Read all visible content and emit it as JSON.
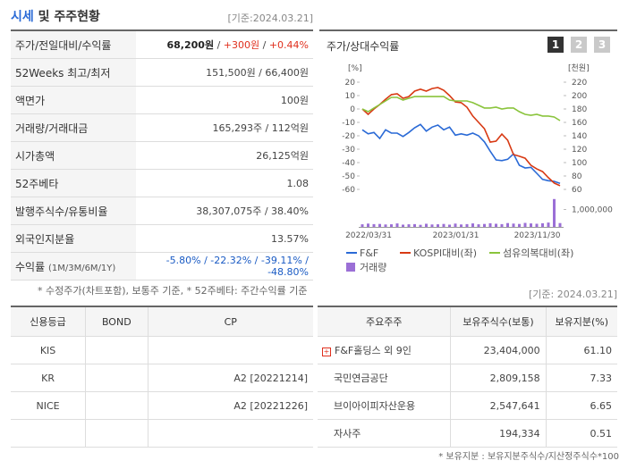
{
  "header": {
    "title_accent": "시세",
    "title": " 및 주주현황",
    "date": "[기준:2024.03.21]"
  },
  "quote_table": {
    "rows": [
      {
        "label": "주가/전일대비/수익률",
        "value": [
          {
            "text": "68,200원",
            "color": "#222222",
            "bold": true
          },
          {
            "text": " / "
          },
          {
            "text": "+300원",
            "color": "#e0301e"
          },
          {
            "text": " / "
          },
          {
            "text": "+0.44%",
            "color": "#e0301e"
          }
        ]
      },
      {
        "label": "52Weeks 최고/최저",
        "value": [
          {
            "text": "151,500원 / 66,400원"
          }
        ]
      },
      {
        "label": "액면가",
        "value": [
          {
            "text": "100원"
          }
        ]
      },
      {
        "label": "거래량/거래대금",
        "value": [
          {
            "text": "165,293주 / 112억원"
          }
        ]
      },
      {
        "label": "시가총액",
        "value": [
          {
            "text": "26,125억원"
          }
        ]
      },
      {
        "label": "52주베타",
        "value": [
          {
            "text": "1.08"
          }
        ]
      },
      {
        "label": "발행주식수/유통비율",
        "value": [
          {
            "text": "38,307,075주 / 38.40%"
          }
        ]
      },
      {
        "label": "외국인지분율",
        "value": [
          {
            "text": "13.57%"
          }
        ]
      },
      {
        "label": "수익률",
        "sublabel": "(1M/3M/6M/1Y)",
        "value": [
          {
            "text": "-5.80% / -22.32% / -39.11% / -48.80%",
            "color": "#1a5bc4"
          }
        ]
      }
    ]
  },
  "chart_panel": {
    "title": "주가/상대수익률",
    "buttons": [
      "1",
      "2",
      "3"
    ]
  },
  "chart_data": {
    "type": "line",
    "left_axis_label": "[%]",
    "right_axis_label": "[천원]",
    "categories": [
      "2022/03/31",
      null,
      null,
      null,
      null,
      null,
      null,
      null,
      null,
      null,
      null,
      null,
      null,
      null,
      null,
      "2023/01/31",
      null,
      null,
      null,
      null,
      null,
      null,
      null,
      null,
      null,
      null,
      null,
      null,
      null,
      "2023/11/30",
      null,
      null,
      null,
      null,
      null
    ],
    "ylim": [
      -60,
      20
    ],
    "yticks": [
      20,
      10,
      0,
      -10,
      -20,
      -30,
      -40,
      -50,
      -60
    ],
    "y2lim": [
      60,
      220
    ],
    "y2ticks": [
      220,
      200,
      180,
      160,
      140,
      120,
      100,
      80,
      60
    ],
    "volume_lim": [
      0,
      2000000
    ],
    "volume_ticks": [
      {
        "value": 1000000,
        "label": "1,000,000"
      }
    ],
    "series": [
      {
        "name": "F&F",
        "color": "#2a6ad6",
        "axis": "y2",
        "values": [
          149,
          143,
          145,
          136,
          149,
          144,
          144,
          139,
          145,
          152,
          157,
          147,
          153,
          156,
          149,
          153,
          141,
          143,
          141,
          144,
          140,
          131,
          117,
          104,
          103,
          105,
          113,
          96,
          92,
          93,
          84,
          75,
          73,
          72,
          69
        ]
      },
      {
        "name": "KOSPI대비(좌)",
        "color": "#d83a14",
        "values": [
          0,
          -4,
          0,
          3.3,
          7.3,
          10.7,
          11.3,
          8,
          9.3,
          13.3,
          14.7,
          13.3,
          15.3,
          16,
          14,
          10,
          5.3,
          4.7,
          1.3,
          -5.3,
          -10,
          -14.7,
          -24.7,
          -24,
          -18.7,
          -23.3,
          -34,
          -35.3,
          -36.7,
          -42,
          -44.7,
          -46.7,
          -51.3,
          -55.3,
          -57.3
        ]
      },
      {
        "name": "섬유의복대비(좌)",
        "color": "#8ac43c",
        "values": [
          0,
          -2,
          0.7,
          3.3,
          6,
          8.7,
          8.7,
          6.7,
          8,
          9.3,
          9.3,
          9.3,
          9.3,
          9.3,
          9.3,
          6.7,
          6,
          6,
          6,
          4.7,
          2.7,
          0.7,
          0.7,
          1.3,
          0,
          0.7,
          0.7,
          -2,
          -4,
          -4.7,
          -4,
          -5.3,
          -5.3,
          -6,
          -8.7
        ]
      },
      {
        "name": "거래량",
        "color": "#9b6fd6",
        "type": "bar",
        "axis": "volume",
        "values": [
          150000,
          190000,
          160000,
          170000,
          140000,
          150000,
          200000,
          130000,
          150000,
          160000,
          120000,
          180000,
          140000,
          150000,
          170000,
          130000,
          190000,
          140000,
          160000,
          200000,
          150000,
          170000,
          210000,
          180000,
          160000,
          220000,
          190000,
          170000,
          230000,
          200000,
          180000,
          210000,
          250000,
          1600000,
          220000
        ]
      }
    ]
  },
  "footnote": "* 수정주가(차트포함), 보통주 기준, * 52주베타: 주간수익률 기준",
  "date2": "[기준: 2024.03.21]",
  "credit_table": {
    "headers": [
      "신용등급",
      "BOND",
      "CP"
    ],
    "rows": [
      [
        "KIS",
        null,
        null
      ],
      [
        "KR",
        null,
        "A2 [20221214]"
      ],
      [
        "NICE",
        null,
        "A2 [20221226]"
      ],
      [
        null,
        null,
        null
      ]
    ]
  },
  "holder_table": {
    "headers": [
      "주요주주",
      "보유주식수(보통)",
      "보유지분(%)"
    ],
    "rows": [
      [
        "F&F홀딩스 외 9인",
        "23,404,000",
        "61.10"
      ],
      [
        "국민연금공단",
        "2,809,158",
        "7.33"
      ],
      [
        "브이아이피자산운용",
        "2,547,641",
        "6.65"
      ],
      [
        "자사주",
        "194,334",
        "0.51"
      ]
    ]
  },
  "holder_note": "* 보유지분 : 보유지분주식수/지산정주식수*100"
}
